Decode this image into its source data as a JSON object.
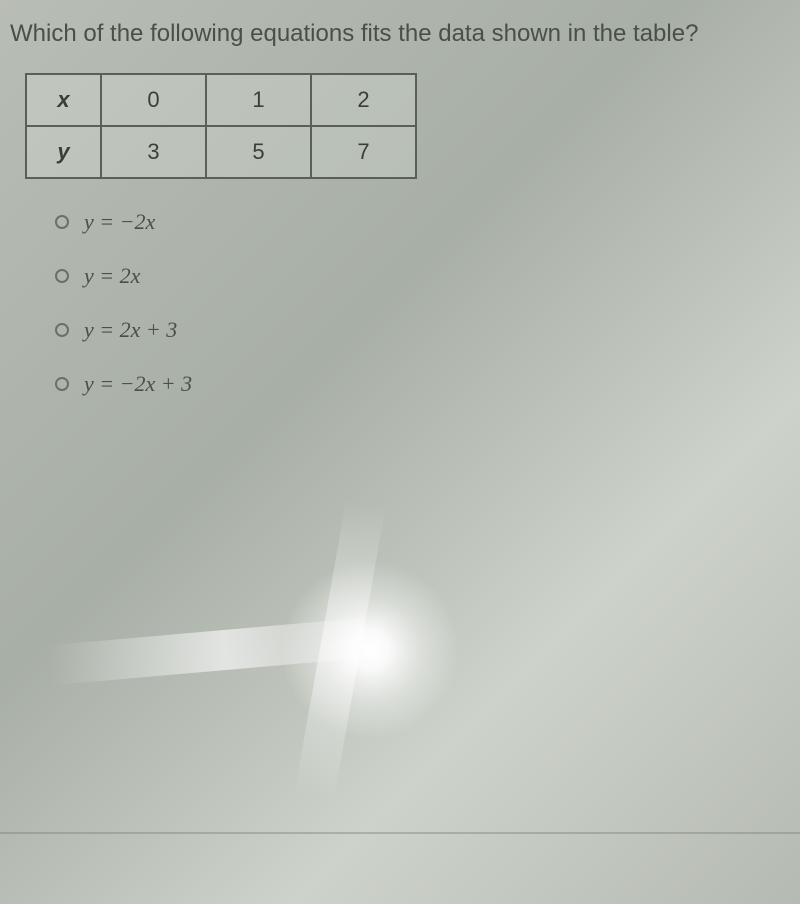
{
  "question": "Which of the following equations fits the data shown in the table?",
  "table": {
    "headers": [
      "x",
      "y"
    ],
    "columns": [
      {
        "x": "0",
        "y": "3"
      },
      {
        "x": "1",
        "y": "5"
      },
      {
        "x": "2",
        "y": "7"
      }
    ]
  },
  "options": [
    {
      "text": "y = −2x"
    },
    {
      "text": "y = 2x"
    },
    {
      "text": "y = 2x + 3"
    },
    {
      "text": "y = −2x + 3"
    }
  ],
  "styling": {
    "background_colors": [
      "#b8bdb5",
      "#a8afa6",
      "#cdd2ca"
    ],
    "text_color": "#4a5048",
    "border_color": "#5a6058",
    "question_fontsize": 24,
    "table_fontsize": 22,
    "option_fontsize": 22,
    "table_header_width": 75,
    "table_cell_width": 105
  }
}
